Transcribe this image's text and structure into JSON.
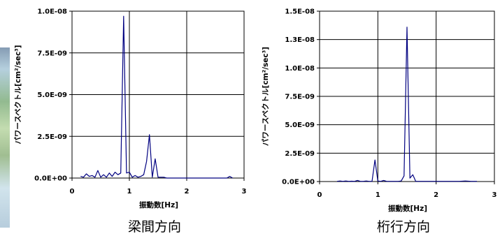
{
  "chart_data": [
    {
      "type": "line",
      "caption": "梁間方向",
      "xlabel": "振動数[Hz]",
      "ylabel": "パワースペクトル[cm²/sec³]",
      "xlim": [
        0,
        3
      ],
      "ylim": [
        0,
        1e-08
      ],
      "x_ticks": [
        "0",
        "1",
        "2",
        "3"
      ],
      "y_ticks": [
        "0.0E+00",
        "2.5E-09",
        "5.0E-09",
        "7.5E-09",
        "1.0E-08"
      ],
      "grid": true,
      "series": [
        {
          "color": "#000080",
          "x": [
            0.15,
            0.2,
            0.25,
            0.3,
            0.35,
            0.4,
            0.45,
            0.5,
            0.55,
            0.6,
            0.65,
            0.7,
            0.75,
            0.8,
            0.85,
            0.9,
            0.95,
            1.0,
            1.05,
            1.1,
            1.15,
            1.2,
            1.25,
            1.3,
            1.35,
            1.4,
            1.45,
            1.5,
            1.55,
            1.6,
            1.65,
            1.7,
            1.75,
            2.7,
            2.75,
            2.8
          ],
          "y": [
            1e-10,
            5e-11,
            2.5e-10,
            1e-10,
            1.5e-10,
            5e-11,
            4.5e-10,
            5e-11,
            2e-10,
            5e-11,
            3e-10,
            1e-10,
            3.5e-10,
            2e-10,
            3e-10,
            9.7e-09,
            3e-10,
            3.5e-10,
            5e-11,
            1.5e-10,
            5e-11,
            1e-10,
            2e-10,
            1e-09,
            2.6e-09,
            5e-11,
            1.15e-09,
            5e-11,
            5e-11,
            5e-11,
            0.0,
            0.0,
            0.0,
            0.0,
            1e-10,
            0.0
          ]
        }
      ]
    },
    {
      "type": "line",
      "caption": "桁行方向",
      "xlabel": "振動数[Hz]",
      "ylabel": "パワースペクトル[cm²/sec³]",
      "xlim": [
        0,
        3
      ],
      "ylim": [
        0,
        1.5e-08
      ],
      "x_ticks": [
        "0",
        "1",
        "2",
        "3"
      ],
      "y_ticks": [
        "0.0E+00",
        "2.5E-09",
        "5.0E-09",
        "7.5E-09",
        "1.0E-08",
        "1.3E-08",
        "1.5E-08"
      ],
      "grid": true,
      "series": [
        {
          "color": "#000080",
          "x": [
            0.3,
            0.35,
            0.4,
            0.45,
            0.5,
            0.55,
            0.6,
            0.65,
            0.7,
            0.75,
            0.8,
            0.85,
            0.9,
            0.95,
            1.0,
            1.05,
            1.1,
            1.15,
            1.2,
            1.25,
            1.3,
            1.35,
            1.4,
            1.45,
            1.5,
            1.55,
            1.6,
            1.65,
            1.7,
            1.75,
            1.8,
            1.85,
            2.0,
            2.1,
            2.2,
            2.3,
            2.4,
            2.5,
            2.6,
            2.7
          ],
          "y": [
            2e-11,
            5e-11,
            2e-11,
            5e-11,
            2e-11,
            3e-11,
            2e-11,
            1e-10,
            2e-11,
            2e-11,
            5e-11,
            2e-11,
            2e-11,
            1.9e-09,
            5e-11,
            2e-11,
            1e-10,
            2e-11,
            2e-11,
            2e-11,
            2e-11,
            2e-11,
            5e-11,
            5e-10,
            1.36e-08,
            3e-10,
            6e-10,
            2e-11,
            2e-11,
            2e-11,
            2e-11,
            2e-11,
            2e-11,
            2e-11,
            2e-11,
            2e-11,
            2e-11,
            5e-11,
            2e-11,
            2e-11
          ]
        }
      ]
    }
  ]
}
